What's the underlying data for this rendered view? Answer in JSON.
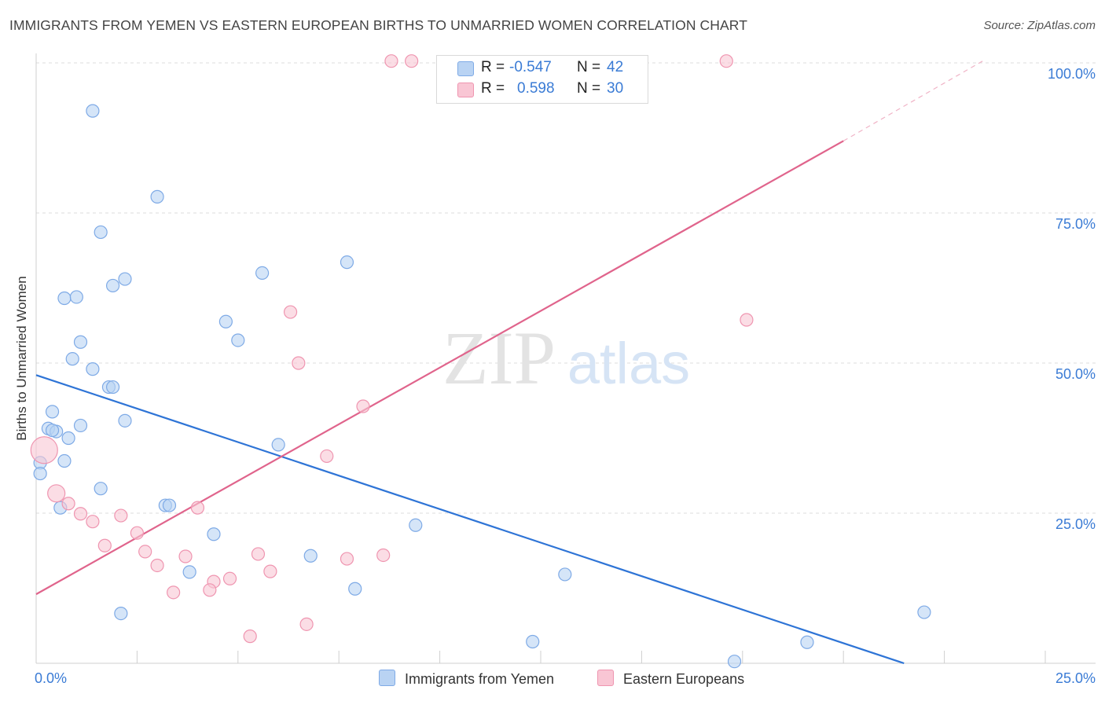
{
  "title": "IMMIGRANTS FROM YEMEN VS EASTERN EUROPEAN BIRTHS TO UNMARRIED WOMEN CORRELATION CHART",
  "source": "Source: ZipAtlas.com",
  "watermark": {
    "zip": "ZIP",
    "atlas": "atlas"
  },
  "colors": {
    "blue_fill": "#b9d3f3",
    "blue_stroke": "#7eaae6",
    "blue_line": "#2e74d6",
    "pink_fill": "#f9c6d4",
    "pink_stroke": "#ef95b0",
    "pink_line": "#e0648c",
    "axis_text": "#3a7bd5",
    "grid": "#dcdcdc"
  },
  "legend": {
    "rows": [
      {
        "r_label": "R =",
        "r_value": "-0.547",
        "n_label": "N =",
        "n_value": "42"
      },
      {
        "r_label": "R =",
        "r_value": "0.598",
        "n_label": "N =",
        "n_value": "30"
      }
    ]
  },
  "chart_data": {
    "type": "scatter",
    "title": "IMMIGRANTS FROM YEMEN VS EASTERN EUROPEAN BIRTHS TO UNMARRIED WOMEN CORRELATION CHART",
    "xlabel": "",
    "ylabel": "Births to Unmarried Women",
    "xlim": [
      0,
      25
    ],
    "ylim": [
      0,
      100
    ],
    "x_tick_labels": [
      "0.0%",
      "25.0%"
    ],
    "y_ticks": [
      25,
      50,
      75,
      100
    ],
    "y_tick_labels": [
      "25.0%",
      "50.0%",
      "75.0%",
      "100.0%"
    ],
    "grid": true,
    "series": [
      {
        "name": "Immigrants from Yemen",
        "color": "blue",
        "r": "-0.547",
        "n": "42",
        "trend": {
          "x0": 0.0,
          "y0": 48.0,
          "x1": 21.5,
          "y1": 0.0
        },
        "points": [
          {
            "x": 1.4,
            "y": 92.0
          },
          {
            "x": 3.0,
            "y": 77.7
          },
          {
            "x": 1.6,
            "y": 71.8
          },
          {
            "x": 5.6,
            "y": 65.0
          },
          {
            "x": 7.7,
            "y": 66.8
          },
          {
            "x": 2.2,
            "y": 64.0
          },
          {
            "x": 1.9,
            "y": 62.9
          },
          {
            "x": 0.7,
            "y": 60.8
          },
          {
            "x": 1.0,
            "y": 61.0
          },
          {
            "x": 4.7,
            "y": 56.9
          },
          {
            "x": 5.0,
            "y": 53.8
          },
          {
            "x": 1.1,
            "y": 53.5
          },
          {
            "x": 0.9,
            "y": 50.7
          },
          {
            "x": 1.4,
            "y": 49.0
          },
          {
            "x": 1.8,
            "y": 46.0
          },
          {
            "x": 1.9,
            "y": 46.0
          },
          {
            "x": 0.4,
            "y": 41.9
          },
          {
            "x": 2.2,
            "y": 40.4
          },
          {
            "x": 1.1,
            "y": 39.6
          },
          {
            "x": 0.3,
            "y": 39.1
          },
          {
            "x": 0.5,
            "y": 38.6
          },
          {
            "x": 0.4,
            "y": 38.8
          },
          {
            "x": 0.8,
            "y": 37.5
          },
          {
            "x": 6.0,
            "y": 36.4
          },
          {
            "x": 0.7,
            "y": 33.7
          },
          {
            "x": 0.1,
            "y": 33.4
          },
          {
            "x": 0.1,
            "y": 31.6
          },
          {
            "x": 1.6,
            "y": 29.1
          },
          {
            "x": 3.2,
            "y": 26.3
          },
          {
            "x": 3.3,
            "y": 26.3
          },
          {
            "x": 0.6,
            "y": 25.9
          },
          {
            "x": 9.4,
            "y": 23.0
          },
          {
            "x": 4.4,
            "y": 21.5
          },
          {
            "x": 6.8,
            "y": 17.9
          },
          {
            "x": 3.8,
            "y": 15.2
          },
          {
            "x": 13.1,
            "y": 14.8
          },
          {
            "x": 7.9,
            "y": 12.4
          },
          {
            "x": 2.1,
            "y": 8.3
          },
          {
            "x": 22.0,
            "y": 8.5
          },
          {
            "x": 12.3,
            "y": 3.6
          },
          {
            "x": 19.1,
            "y": 3.5
          },
          {
            "x": 17.3,
            "y": 0.3
          }
        ]
      },
      {
        "name": "Eastern Europeans",
        "color": "pink",
        "r": "0.598",
        "n": "30",
        "trend": {
          "x0": 0.0,
          "y0": 11.5,
          "x1": 20.0,
          "y1": 87.0,
          "dash_to_x": 23.5,
          "dash_to_y": 100.5
        },
        "points": [
          {
            "x": 8.8,
            "y": 100.3
          },
          {
            "x": 9.3,
            "y": 100.3
          },
          {
            "x": 17.1,
            "y": 100.3
          },
          {
            "x": 6.3,
            "y": 58.5
          },
          {
            "x": 17.6,
            "y": 57.2
          },
          {
            "x": 6.5,
            "y": 50.0
          },
          {
            "x": 8.1,
            "y": 42.8
          },
          {
            "x": 0.2,
            "y": 35.5
          },
          {
            "x": 7.2,
            "y": 34.5
          },
          {
            "x": 0.5,
            "y": 28.3
          },
          {
            "x": 0.8,
            "y": 26.6
          },
          {
            "x": 4.0,
            "y": 25.9
          },
          {
            "x": 1.1,
            "y": 24.9
          },
          {
            "x": 2.1,
            "y": 24.6
          },
          {
            "x": 1.4,
            "y": 23.6
          },
          {
            "x": 2.5,
            "y": 21.7
          },
          {
            "x": 1.7,
            "y": 19.6
          },
          {
            "x": 2.7,
            "y": 18.6
          },
          {
            "x": 5.5,
            "y": 18.2
          },
          {
            "x": 8.6,
            "y": 18.0
          },
          {
            "x": 3.7,
            "y": 17.8
          },
          {
            "x": 7.7,
            "y": 17.4
          },
          {
            "x": 3.0,
            "y": 16.3
          },
          {
            "x": 5.8,
            "y": 15.3
          },
          {
            "x": 4.8,
            "y": 14.1
          },
          {
            "x": 4.4,
            "y": 13.6
          },
          {
            "x": 4.3,
            "y": 12.2
          },
          {
            "x": 3.4,
            "y": 11.8
          },
          {
            "x": 6.7,
            "y": 6.5
          },
          {
            "x": 5.3,
            "y": 4.5
          }
        ]
      }
    ]
  }
}
